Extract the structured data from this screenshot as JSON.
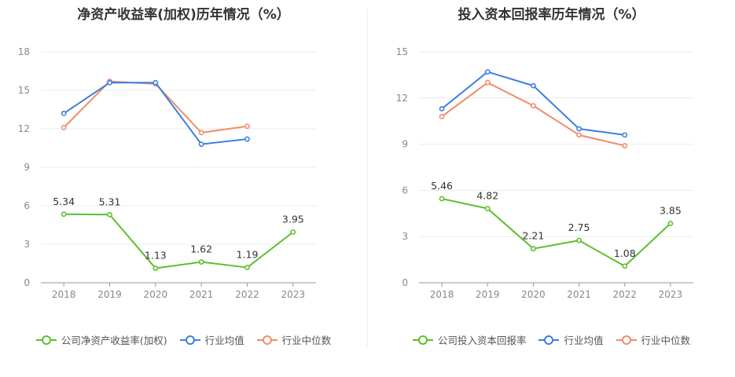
{
  "chart_data": [
    {
      "type": "line",
      "title": "净资产收益率(加权)历年情况（%）",
      "categories": [
        "2018",
        "2019",
        "2020",
        "2021",
        "2022",
        "2023"
      ],
      "ylim": [
        0,
        18
      ],
      "yticks": [
        0,
        3,
        6,
        9,
        12,
        15,
        18
      ],
      "grid": true,
      "legend_position": "bottom",
      "series": [
        {
          "name": "公司净资产收益率(加权)",
          "color": "#5bc02d",
          "values": [
            5.34,
            5.31,
            1.13,
            1.62,
            1.19,
            3.95
          ],
          "labels": [
            "5.34",
            "5.31",
            "1.13",
            "1.62",
            "1.19",
            "3.95"
          ]
        },
        {
          "name": "行业均值",
          "color": "#3d7ee0",
          "values": [
            13.2,
            15.6,
            15.6,
            10.8,
            11.2,
            null
          ]
        },
        {
          "name": "行业中位数",
          "color": "#f08c6b",
          "values": [
            12.1,
            15.7,
            15.5,
            11.7,
            12.2,
            null
          ]
        }
      ]
    },
    {
      "type": "line",
      "title": "投入资本回报率历年情况（%）",
      "categories": [
        "2018",
        "2019",
        "2020",
        "2021",
        "2022",
        "2023"
      ],
      "ylim": [
        0,
        15
      ],
      "yticks": [
        0,
        3,
        6,
        9,
        12,
        15
      ],
      "grid": true,
      "legend_position": "bottom",
      "series": [
        {
          "name": "公司投入资本回报率",
          "color": "#5bc02d",
          "values": [
            5.46,
            4.82,
            2.21,
            2.75,
            1.08,
            3.85
          ],
          "labels": [
            "5.46",
            "4.82",
            "2.21",
            "2.75",
            "1.08",
            "3.85"
          ]
        },
        {
          "name": "行业均值",
          "color": "#3d7ee0",
          "values": [
            11.3,
            13.7,
            12.8,
            10.0,
            9.6,
            null
          ]
        },
        {
          "name": "行业中位数",
          "color": "#f08c6b",
          "values": [
            10.8,
            13.0,
            11.5,
            9.6,
            8.9,
            null
          ]
        }
      ]
    }
  ]
}
